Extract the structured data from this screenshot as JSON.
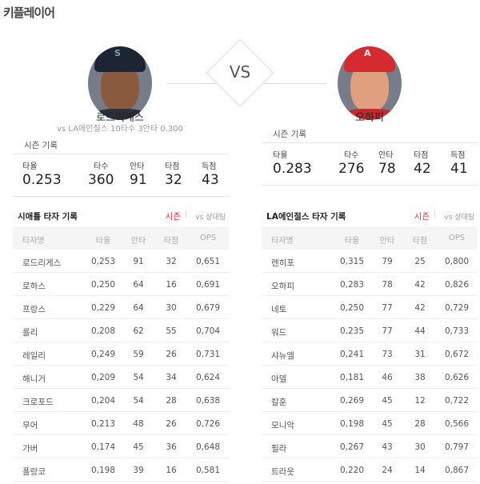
{
  "title": "키플레이어",
  "vs_label": "VS",
  "players": [
    {
      "name": "로드리게스",
      "vs_record": "vs LA에인절스  10타수 3안타 0.300",
      "team_colors": {
        "cap": "#1d2433",
        "logo": "#7aa8a6"
      },
      "season_label": "시즌 기록",
      "stats": [
        {
          "k": "타율",
          "v": "0.253"
        },
        {
          "k": "타수",
          "v": "360"
        },
        {
          "k": "안타",
          "v": "91"
        },
        {
          "k": "타점",
          "v": "32"
        },
        {
          "k": "득점",
          "v": "43"
        }
      ]
    },
    {
      "name": "오하피",
      "team_colors": {
        "cap": "#d42a30",
        "logo": "#ffffff"
      },
      "season_label": "시즌 기록",
      "stats": [
        {
          "k": "타율",
          "v": "0.283"
        },
        {
          "k": "타수",
          "v": "276"
        },
        {
          "k": "안타",
          "v": "78"
        },
        {
          "k": "타점",
          "v": "42"
        },
        {
          "k": "득점",
          "v": "41"
        }
      ]
    }
  ],
  "tables": [
    {
      "title": "시애틀 타자 기록",
      "season": "시즌",
      "sep": "|",
      "vs": "vs 상대팀",
      "headers": [
        "타자명",
        "타율",
        "안타",
        "타점",
        "OPS"
      ],
      "rows": [
        [
          "로드리게스",
          "0,253",
          "91",
          "32",
          "0,651"
        ],
        [
          "로하스",
          "0,250",
          "64",
          "16",
          "0,691"
        ],
        [
          "프랑스",
          "0,229",
          "64",
          "30",
          "0,679"
        ],
        [
          "롤리",
          "0,208",
          "62",
          "55",
          "0,704"
        ],
        [
          "레일리",
          "0,249",
          "59",
          "26",
          "0,731"
        ],
        [
          "해니거",
          "0,209",
          "54",
          "34",
          "0,624"
        ],
        [
          "크로포드",
          "0,204",
          "54",
          "28",
          "0,638"
        ],
        [
          "무어",
          "0,213",
          "48",
          "26",
          "0,726"
        ],
        [
          "가버",
          "0,174",
          "45",
          "36",
          "0,648"
        ],
        [
          "폴랑코",
          "0,198",
          "39",
          "16",
          "0,581"
        ]
      ]
    },
    {
      "title": "LA에인절스 타자 기록",
      "season": "시즌",
      "sep": "|",
      "vs": "vs 상대팀",
      "headers": [
        "타자명",
        "타율",
        "안타",
        "타점",
        "OPS"
      ],
      "rows": [
        [
          "렌히포",
          "0,315",
          "79",
          "25",
          "0,800"
        ],
        [
          "오하피",
          "0,283",
          "78",
          "42",
          "0,826"
        ],
        [
          "네토",
          "0,250",
          "77",
          "42",
          "0,729"
        ],
        [
          "워드",
          "0,235",
          "77",
          "44",
          "0,733"
        ],
        [
          "샤뉴엘",
          "0,241",
          "73",
          "31",
          "0,672"
        ],
        [
          "아델",
          "0,181",
          "46",
          "38",
          "0,626"
        ],
        [
          "칼훈",
          "0,269",
          "45",
          "12",
          "0,722"
        ],
        [
          "모니악",
          "0,198",
          "45",
          "28",
          "0,566"
        ],
        [
          "필라",
          "0,267",
          "43",
          "30",
          "0,797"
        ],
        [
          "트라웃",
          "0,220",
          "24",
          "14",
          "0,867"
        ]
      ]
    }
  ]
}
